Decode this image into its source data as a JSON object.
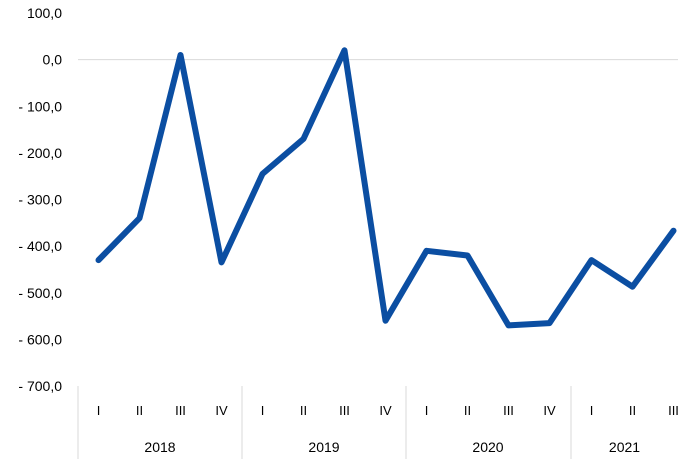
{
  "chart_data": {
    "type": "line",
    "title": "",
    "xlabel": "",
    "ylabel": "",
    "ylim": [
      -700,
      100
    ],
    "y_ticks": [
      100,
      0,
      -100,
      -200,
      -300,
      -400,
      -500,
      -600,
      -700
    ],
    "y_tick_labels": [
      "100,0",
      "0,0",
      "- 100,0",
      "- 200,0",
      "- 300,0",
      "- 400,0",
      "- 500,0",
      "- 600,0",
      "- 700,0"
    ],
    "zero_line": true,
    "grid": false,
    "legend": "none",
    "line_color": "#0b4ea2",
    "categories": [
      {
        "quarter": "I",
        "year": "2018"
      },
      {
        "quarter": "II",
        "year": "2018"
      },
      {
        "quarter": "III",
        "year": "2018"
      },
      {
        "quarter": "IV",
        "year": "2018"
      },
      {
        "quarter": "I",
        "year": "2019"
      },
      {
        "quarter": "II",
        "year": "2019"
      },
      {
        "quarter": "III",
        "year": "2019"
      },
      {
        "quarter": "IV",
        "year": "2019"
      },
      {
        "quarter": "I",
        "year": "2020"
      },
      {
        "quarter": "II",
        "year": "2020"
      },
      {
        "quarter": "III",
        "year": "2020"
      },
      {
        "quarter": "IV",
        "year": "2020"
      },
      {
        "quarter": "I",
        "year": "2021"
      },
      {
        "quarter": "II",
        "year": "2021"
      },
      {
        "quarter": "III",
        "year": "2021"
      }
    ],
    "years": [
      "2018",
      "2019",
      "2020",
      "2021"
    ],
    "series": [
      {
        "values": [
          -430,
          -340,
          10,
          -435,
          -245,
          -170,
          20,
          -560,
          -410,
          -420,
          -570,
          -565,
          -430,
          -487,
          -367
        ]
      }
    ]
  }
}
